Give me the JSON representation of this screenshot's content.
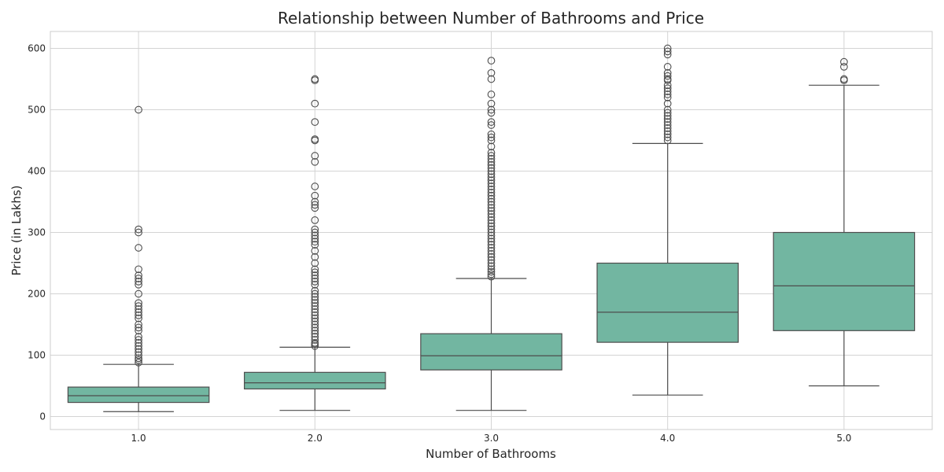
{
  "chart_data": {
    "type": "box",
    "title": "Relationship between Number of Bathrooms and Price",
    "xlabel": "Number of Bathrooms",
    "ylabel": "Price (in Lakhs)",
    "ylim": [
      -20,
      630
    ],
    "yticks": [
      0,
      100,
      200,
      300,
      400,
      500,
      600
    ],
    "grid": true,
    "box_color": "#72b6a1",
    "edge_color": "#4d4d4d",
    "categories": [
      "1.0",
      "2.0",
      "3.0",
      "4.0",
      "5.0"
    ],
    "boxes": [
      {
        "category": "1.0",
        "whisker_low": 8,
        "q1": 23,
        "median": 34,
        "q3": 48,
        "whisker_high": 85,
        "outliers": [
          88,
          92,
          95,
          100,
          105,
          110,
          115,
          120,
          125,
          130,
          140,
          145,
          150,
          160,
          165,
          170,
          175,
          180,
          185,
          200,
          215,
          220,
          225,
          230,
          240,
          275,
          300,
          305,
          500
        ]
      },
      {
        "category": "2.0",
        "whisker_low": 10,
        "q1": 45,
        "median": 55,
        "q3": 72,
        "whisker_high": 113,
        "outliers": [
          115,
          118,
          120,
          125,
          130,
          135,
          140,
          145,
          150,
          155,
          160,
          165,
          170,
          175,
          180,
          185,
          190,
          195,
          200,
          205,
          215,
          220,
          225,
          230,
          235,
          240,
          250,
          260,
          270,
          280,
          285,
          290,
          295,
          300,
          305,
          320,
          340,
          345,
          350,
          360,
          375,
          415,
          425,
          450,
          452,
          480,
          510,
          548,
          550
        ]
      },
      {
        "category": "3.0",
        "whisker_low": 10,
        "q1": 76,
        "median": 99,
        "q3": 135,
        "whisker_high": 225,
        "outliers": [
          228,
          232,
          236,
          240,
          245,
          250,
          255,
          260,
          265,
          270,
          275,
          280,
          285,
          290,
          295,
          300,
          305,
          310,
          315,
          320,
          325,
          330,
          335,
          340,
          345,
          350,
          355,
          360,
          365,
          370,
          375,
          380,
          385,
          390,
          395,
          400,
          405,
          410,
          415,
          420,
          425,
          430,
          440,
          450,
          455,
          460,
          475,
          480,
          495,
          500,
          510,
          525,
          550,
          560,
          580
        ]
      },
      {
        "category": "4.0",
        "whisker_low": 35,
        "q1": 121,
        "median": 170,
        "q3": 250,
        "whisker_high": 445,
        "outliers": [
          450,
          455,
          460,
          465,
          470,
          475,
          480,
          485,
          490,
          495,
          500,
          510,
          520,
          525,
          530,
          535,
          540,
          548,
          550,
          555,
          560,
          570,
          590,
          595,
          600
        ]
      },
      {
        "category": "5.0",
        "whisker_low": 50,
        "q1": 140,
        "median": 213,
        "q3": 300,
        "whisker_high": 540,
        "outliers": [
          548,
          550,
          570,
          578
        ]
      }
    ]
  }
}
